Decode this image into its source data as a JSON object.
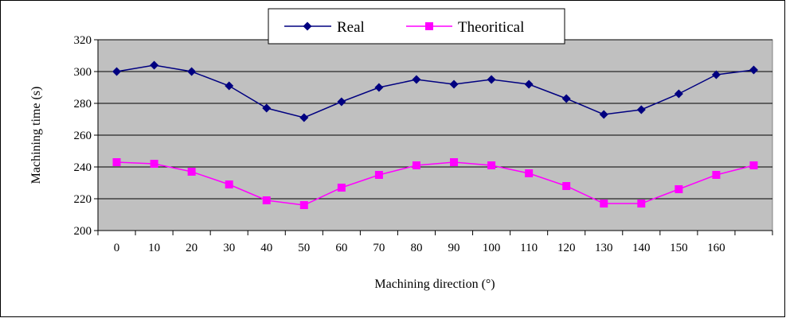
{
  "chart_data": {
    "type": "line",
    "xlabel": "Machining direction (°)",
    "ylabel": "Machining time (s)",
    "categories": [
      "0",
      "10",
      "20",
      "30",
      "40",
      "50",
      "60",
      "70",
      "80",
      "90",
      "100",
      "110",
      "120",
      "130",
      "140",
      "150",
      "160",
      ""
    ],
    "ylim": [
      200,
      320
    ],
    "yticks": [
      200,
      220,
      240,
      260,
      280,
      300,
      320
    ],
    "grid": true,
    "legend_position": "top",
    "plot_background": "#c0c0c0",
    "series": [
      {
        "name": "Real",
        "color": "#000080",
        "marker": "diamond",
        "values": [
          300,
          304,
          300,
          291,
          277,
          271,
          281,
          290,
          295,
          292,
          295,
          292,
          283,
          273,
          276,
          286,
          298,
          301
        ]
      },
      {
        "name": "Theoritical",
        "color": "#ff00ff",
        "marker": "square",
        "values": [
          243,
          242,
          237,
          229,
          219,
          216,
          227,
          235,
          241,
          243,
          241,
          236,
          228,
          217,
          217,
          226,
          235,
          241
        ]
      }
    ]
  }
}
